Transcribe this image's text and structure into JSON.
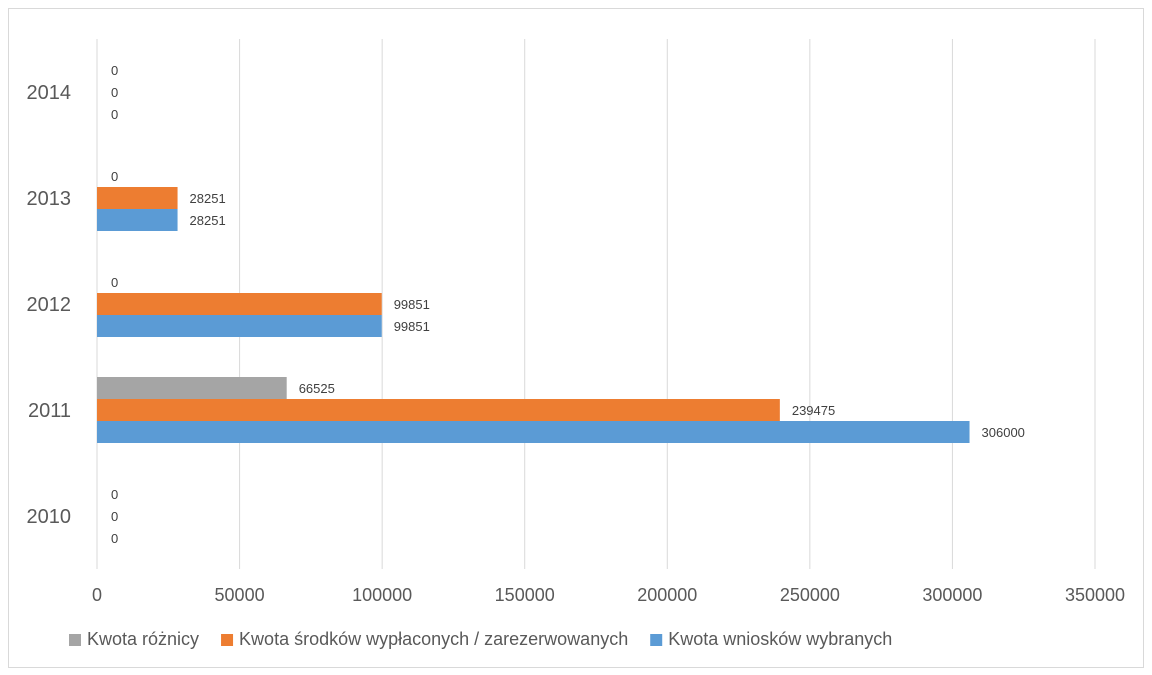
{
  "chart_data": {
    "type": "bar",
    "orientation": "horizontal",
    "categories": [
      "2010",
      "2011",
      "2012",
      "2013",
      "2014"
    ],
    "series": [
      {
        "name": "Kwota wniosków wybranych",
        "color": "#5B9BD5",
        "values": [
          0,
          306000,
          99851,
          28251,
          0
        ]
      },
      {
        "name": "Kwota środków wypłaconych / zarezerwowanych",
        "color": "#ED7D31",
        "values": [
          0,
          239475,
          99851,
          28251,
          0
        ]
      },
      {
        "name": "Kwota różnicy",
        "color": "#A5A5A5",
        "values": [
          0,
          66525,
          0,
          0,
          0
        ]
      }
    ],
    "xlim": [
      0,
      350000
    ],
    "x_ticks": [
      0,
      50000,
      100000,
      150000,
      200000,
      250000,
      300000,
      350000
    ],
    "grid": "vertical",
    "data_labels": true,
    "legend": {
      "position": "bottom",
      "order": [
        "Kwota różnicy",
        "Kwota środków wypłaconych / zarezerwowanych",
        "Kwota wniosków wybranych"
      ]
    }
  }
}
